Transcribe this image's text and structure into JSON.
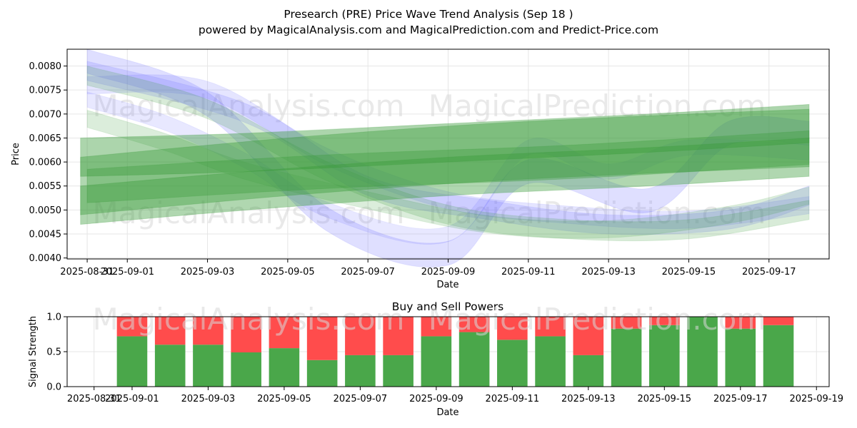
{
  "title": "Presearch (PRE) Price Wave Trend Analysis (Sep 18 )",
  "subtitle": "powered by MagicalAnalysis.com and MagicalPrediction.com and Predict-Price.com",
  "watermarks": [
    "MagicalAnalysis.com",
    "MagicalPrediction.com"
  ],
  "colors": {
    "buy": "#4aa74a",
    "sell": "#ff4c4c",
    "blue_wave": "#6e6eff",
    "green_wave": "#3a9a3a"
  },
  "chart_data": [
    {
      "type": "area",
      "xlabel": "Date",
      "ylabel": "Price",
      "xlim": [
        "2025-08-30T12:00",
        "2025-09-18T12:00"
      ],
      "ylim": [
        0.00398,
        0.00835
      ],
      "grid": true,
      "x_ticks": [
        "2025-08-31",
        "2025-09-01",
        "2025-09-03",
        "2025-09-05",
        "2025-09-07",
        "2025-09-09",
        "2025-09-11",
        "2025-09-13",
        "2025-09-15",
        "2025-09-17"
      ],
      "y_ticks": [
        "0.0040",
        "0.0045",
        "0.0050",
        "0.0055",
        "0.0060",
        "0.0065",
        "0.0070",
        "0.0075",
        "0.0080"
      ],
      "series": [
        {
          "color": "blue",
          "band": 0.00025,
          "opacity": 0.22,
          "points": [
            [
              "2025-08-31",
              0.0081
            ],
            [
              "2025-09-03",
              0.0072
            ],
            [
              "2025-09-06",
              0.0048
            ],
            [
              "2025-09-09",
              0.0041
            ],
            [
              "2025-09-11",
              0.0058
            ],
            [
              "2025-09-14",
              0.0052
            ],
            [
              "2025-09-16",
              0.0066
            ],
            [
              "2025-09-18",
              0.0066
            ]
          ]
        },
        {
          "color": "blue",
          "band": 0.0002,
          "opacity": 0.2,
          "points": [
            [
              "2025-08-31",
              0.0079
            ],
            [
              "2025-09-04",
              0.007
            ],
            [
              "2025-09-07",
              0.0055
            ],
            [
              "2025-09-10",
              0.005
            ],
            [
              "2025-09-13",
              0.0047
            ],
            [
              "2025-09-16",
              0.0048
            ],
            [
              "2025-09-18",
              0.0053
            ]
          ]
        },
        {
          "color": "blue",
          "band": 0.00018,
          "opacity": 0.18,
          "points": [
            [
              "2025-08-31",
              0.0076
            ],
            [
              "2025-09-03",
              0.0075
            ],
            [
              "2025-09-06",
              0.0061
            ],
            [
              "2025-09-09",
              0.0052
            ],
            [
              "2025-09-12",
              0.0049
            ],
            [
              "2025-09-15",
              0.0048
            ],
            [
              "2025-09-18",
              0.0051
            ]
          ]
        },
        {
          "color": "blue",
          "band": 0.00016,
          "opacity": 0.16,
          "points": [
            [
              "2025-08-31",
              0.0073
            ],
            [
              "2025-09-02",
              0.0068
            ],
            [
              "2025-09-04",
              0.006
            ],
            [
              "2025-09-06",
              0.005
            ],
            [
              "2025-09-09",
              0.0045
            ],
            [
              "2025-09-11",
              0.0063
            ],
            [
              "2025-09-13",
              0.0058
            ],
            [
              "2025-09-15",
              0.0063
            ],
            [
              "2025-09-18",
              0.0062
            ]
          ]
        },
        {
          "color": "green",
          "band": 0.0002,
          "opacity": 0.2,
          "points": [
            [
              "2025-08-31",
              0.0078
            ],
            [
              "2025-09-03",
              0.0071
            ],
            [
              "2025-09-06",
              0.0058
            ],
            [
              "2025-09-09",
              0.0049
            ],
            [
              "2025-09-12",
              0.0046
            ],
            [
              "2025-09-15",
              0.0046
            ],
            [
              "2025-09-18",
              0.005
            ]
          ]
        },
        {
          "color": "green",
          "band": 0.00018,
          "opacity": 0.18,
          "points": [
            [
              "2025-08-31",
              0.0069
            ],
            [
              "2025-09-02",
              0.0064
            ],
            [
              "2025-09-04",
              0.0058
            ],
            [
              "2025-09-07",
              0.0052
            ],
            [
              "2025-09-10",
              0.0047
            ],
            [
              "2025-09-13",
              0.0046
            ],
            [
              "2025-09-16",
              0.0049
            ],
            [
              "2025-09-18",
              0.0053
            ]
          ]
        },
        {
          "color": "green",
          "band": 0.0004,
          "opacity": 0.42,
          "points": [
            [
              "2025-08-30T20:00",
              0.0061
            ],
            [
              "2025-09-04",
              0.0062
            ],
            [
              "2025-09-09",
              0.0064
            ],
            [
              "2025-09-14",
              0.0066
            ],
            [
              "2025-09-18",
              0.0068
            ]
          ]
        },
        {
          "color": "green",
          "band": 0.0006,
          "opacity": 0.4,
          "points": [
            [
              "2025-08-30T20:00",
              0.0055
            ],
            [
              "2025-09-05",
              0.0059
            ],
            [
              "2025-09-10",
              0.0062
            ],
            [
              "2025-09-15",
              0.0064
            ],
            [
              "2025-09-18",
              0.0065
            ]
          ]
        },
        {
          "color": "green",
          "band": 0.0004,
          "opacity": 0.4,
          "points": [
            [
              "2025-08-30T20:00",
              0.0051
            ],
            [
              "2025-09-04",
              0.0054
            ],
            [
              "2025-09-09",
              0.0057
            ],
            [
              "2025-09-14",
              0.0059
            ],
            [
              "2025-09-18",
              0.0061
            ]
          ]
        },
        {
          "color": "green",
          "band": 0.00035,
          "opacity": 0.35,
          "points": [
            [
              "2025-08-31",
              0.0055
            ],
            [
              "2025-09-06",
              0.0058
            ],
            [
              "2025-09-12",
              0.006
            ],
            [
              "2025-09-18",
              0.0063
            ]
          ]
        }
      ]
    },
    {
      "type": "bar",
      "title": "Buy and Sell Powers",
      "xlabel": "Date",
      "ylabel": "Signal Strength",
      "xlim": [
        "2025-08-30T07:00",
        "2025-09-19T08:00"
      ],
      "ylim": [
        0,
        1
      ],
      "grid": true,
      "x_ticks": [
        "2025-08-31",
        "2025-09-01",
        "2025-09-03",
        "2025-09-05",
        "2025-09-07",
        "2025-09-09",
        "2025-09-11",
        "2025-09-13",
        "2025-09-15",
        "2025-09-17",
        "2025-09-19"
      ],
      "y_ticks": [
        "0.0",
        "0.5",
        "1.0"
      ],
      "categories": [
        "2025-09-01",
        "2025-09-02",
        "2025-09-03",
        "2025-09-04",
        "2025-09-05",
        "2025-09-06",
        "2025-09-07",
        "2025-09-08",
        "2025-09-09",
        "2025-09-10",
        "2025-09-11",
        "2025-09-12",
        "2025-09-13",
        "2025-09-14",
        "2025-09-15",
        "2025-09-16",
        "2025-09-17",
        "2025-09-18"
      ],
      "series": [
        {
          "values": [
            0.72,
            0.6,
            0.6,
            0.49,
            0.55,
            0.38,
            0.45,
            0.45,
            0.72,
            0.78,
            0.67,
            0.72,
            0.45,
            0.83,
            0.88,
            1.0,
            0.83,
            0.88
          ]
        },
        {
          "values": [
            0.28,
            0.4,
            0.4,
            0.51,
            0.45,
            0.62,
            0.55,
            0.55,
            0.28,
            0.22,
            0.33,
            0.28,
            0.55,
            0.17,
            0.12,
            0.0,
            0.17,
            0.12
          ]
        }
      ]
    }
  ]
}
